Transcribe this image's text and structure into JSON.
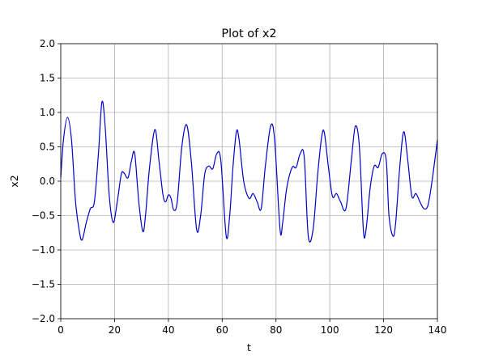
{
  "chart_data": {
    "type": "line",
    "title": "Plot of x2",
    "xlabel": "t",
    "ylabel": "x2",
    "xlim": [
      0,
      140
    ],
    "ylim": [
      -2.0,
      2.0
    ],
    "xticks": [
      0,
      20,
      40,
      60,
      80,
      100,
      120,
      140
    ],
    "yticks": [
      -2.0,
      -1.5,
      -1.0,
      -0.5,
      0.0,
      0.5,
      1.0,
      1.5,
      2.0
    ],
    "xtick_labels": [
      "0",
      "20",
      "40",
      "60",
      "80",
      "100",
      "120",
      "140"
    ],
    "ytick_labels": [
      "−2.0",
      "−1.5",
      "−1.0",
      "−0.5",
      "0.0",
      "0.5",
      "1.0",
      "1.5",
      "2.0"
    ],
    "grid": true,
    "series": [
      {
        "color": "#0000cc",
        "x": [
          0,
          1,
          2.5,
          4,
          5.5,
          7,
          8,
          9.5,
          11,
          12.5,
          14,
          15.3,
          16.5,
          18,
          19.5,
          21,
          22.5,
          23.5,
          25,
          26.3,
          27.5,
          29,
          30.5,
          31.5,
          33,
          35,
          36.5,
          38,
          39,
          40,
          41,
          42,
          43.3,
          45,
          46.8,
          48.5,
          50.5,
          52,
          53.5,
          55,
          56.5,
          58,
          59.5,
          61.5,
          62.8,
          64,
          65.3,
          66.3,
          68,
          70,
          71.5,
          73,
          74.5,
          76,
          78,
          79.5,
          81.5,
          82.5,
          84,
          86,
          87.5,
          89,
          90.5,
          92,
          93.8,
          95.5,
          97,
          98,
          99.5,
          101,
          102.5,
          104,
          106,
          108,
          109.5,
          111,
          112.5,
          113.5,
          115,
          116.5,
          118,
          119.5,
          121,
          122,
          123.5,
          124.5,
          126,
          127.5,
          129,
          130.5,
          132,
          133.5,
          135,
          136.5,
          138,
          140
        ],
        "y": [
          0.05,
          0.6,
          0.93,
          0.6,
          -0.3,
          -0.75,
          -0.85,
          -0.6,
          -0.4,
          -0.3,
          0.4,
          1.15,
          0.8,
          -0.2,
          -0.6,
          -0.3,
          0.1,
          0.12,
          0.05,
          0.3,
          0.4,
          -0.3,
          -0.73,
          -0.5,
          0.2,
          0.75,
          0.3,
          -0.2,
          -0.3,
          -0.2,
          -0.25,
          -0.42,
          -0.3,
          0.5,
          0.82,
          0.3,
          -0.7,
          -0.5,
          0.1,
          0.22,
          0.18,
          0.4,
          0.3,
          -0.8,
          -0.5,
          0.2,
          0.72,
          0.6,
          0.0,
          -0.25,
          -0.18,
          -0.3,
          -0.4,
          0.2,
          0.8,
          0.6,
          -0.7,
          -0.6,
          -0.1,
          0.2,
          0.2,
          0.4,
          0.35,
          -0.8,
          -0.7,
          0.1,
          0.65,
          0.7,
          0.2,
          -0.22,
          -0.18,
          -0.3,
          -0.4,
          0.3,
          0.8,
          0.5,
          -0.72,
          -0.7,
          -0.1,
          0.22,
          0.2,
          0.4,
          0.3,
          -0.5,
          -0.8,
          -0.6,
          0.2,
          0.72,
          0.3,
          -0.22,
          -0.18,
          -0.3,
          -0.4,
          -0.35,
          0.0,
          0.6
        ]
      }
    ]
  }
}
